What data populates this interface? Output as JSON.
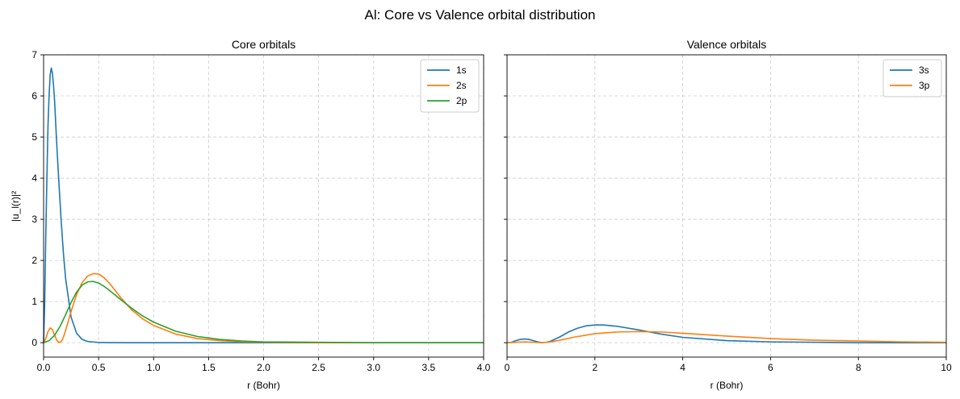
{
  "suptitle": "Al: Core vs Valence orbital distribution",
  "colors": {
    "1s": "#1f77b4",
    "2s": "#ff7f0e",
    "2p": "#2ca02c",
    "3s": "#1f77b4",
    "3p": "#ff7f0e",
    "grid": "#cccccc",
    "axis": "#000000"
  },
  "chart_data": [
    {
      "type": "line",
      "title": "Core orbitals",
      "xlabel": "r (Bohr)",
      "ylabel": "|u_l(r)|²",
      "xlim": [
        0,
        4.0
      ],
      "ylim": [
        -0.35,
        7.0
      ],
      "xticks": [
        0.0,
        0.5,
        1.0,
        1.5,
        2.0,
        2.5,
        3.0,
        3.5,
        4.0
      ],
      "xtick_labels": [
        "0.0",
        "0.5",
        "1.0",
        "1.5",
        "2.0",
        "2.5",
        "3.0",
        "3.5",
        "4.0"
      ],
      "yticks": [
        0,
        1,
        2,
        3,
        4,
        5,
        6,
        7
      ],
      "ytick_labels": [
        "0",
        "1",
        "2",
        "3",
        "4",
        "5",
        "6",
        "7"
      ],
      "grid": true,
      "legend": "top-right",
      "series": [
        {
          "name": "1s",
          "x": [
            0,
            0.01,
            0.02,
            0.03,
            0.04,
            0.05,
            0.06,
            0.07,
            0.08,
            0.09,
            0.1,
            0.11,
            0.12,
            0.14,
            0.16,
            0.18,
            0.2,
            0.25,
            0.3,
            0.35,
            0.4,
            0.5,
            0.6,
            0.8,
            1.0,
            2.0,
            4.0
          ],
          "y": [
            0,
            0.99,
            2.64,
            4.0,
            5.28,
            6.02,
            6.52,
            6.68,
            6.55,
            6.27,
            5.88,
            5.34,
            4.8,
            3.85,
            2.95,
            2.18,
            1.56,
            0.62,
            0.23,
            0.08,
            0.03,
            0.005,
            0.001,
            0,
            0,
            0,
            0
          ]
        },
        {
          "name": "2s",
          "x": [
            0,
            0.02,
            0.04,
            0.06,
            0.08,
            0.1,
            0.12,
            0.14,
            0.16,
            0.18,
            0.2,
            0.25,
            0.3,
            0.35,
            0.4,
            0.45,
            0.5,
            0.55,
            0.6,
            0.7,
            0.8,
            0.9,
            1.0,
            1.2,
            1.4,
            1.6,
            1.8,
            2.0,
            2.5,
            3.0,
            4.0
          ],
          "y": [
            0,
            0.1,
            0.27,
            0.36,
            0.32,
            0.18,
            0.06,
            0.0,
            0.03,
            0.13,
            0.3,
            0.76,
            1.17,
            1.46,
            1.62,
            1.68,
            1.67,
            1.58,
            1.44,
            1.1,
            0.8,
            0.58,
            0.42,
            0.21,
            0.1,
            0.05,
            0.02,
            0.01,
            0,
            0,
            0
          ]
        },
        {
          "name": "2p",
          "x": [
            0,
            0.05,
            0.1,
            0.15,
            0.2,
            0.25,
            0.3,
            0.35,
            0.4,
            0.45,
            0.5,
            0.55,
            0.6,
            0.7,
            0.8,
            0.9,
            1.0,
            1.2,
            1.4,
            1.6,
            1.8,
            2.0,
            2.5,
            3.0,
            4.0
          ],
          "y": [
            0,
            0.05,
            0.18,
            0.4,
            0.68,
            0.98,
            1.23,
            1.4,
            1.48,
            1.49,
            1.45,
            1.37,
            1.27,
            1.05,
            0.84,
            0.65,
            0.5,
            0.28,
            0.15,
            0.08,
            0.04,
            0.02,
            0.01,
            0,
            0
          ]
        }
      ]
    },
    {
      "type": "line",
      "title": "Valence orbitals",
      "xlabel": "r (Bohr)",
      "ylabel": "",
      "xlim": [
        0,
        10
      ],
      "ylim": [
        -0.35,
        7.0
      ],
      "xticks": [
        0,
        2,
        4,
        6,
        8,
        10
      ],
      "xtick_labels": [
        "0",
        "2",
        "4",
        "6",
        "8",
        "10"
      ],
      "yticks": [
        0,
        1,
        2,
        3,
        4,
        5,
        6,
        7
      ],
      "ytick_labels": [
        "",
        "",
        "",
        "",
        "",
        "",
        "",
        ""
      ],
      "grid": true,
      "legend": "top-right",
      "series": [
        {
          "name": "3s",
          "x": [
            0,
            0.1,
            0.2,
            0.3,
            0.4,
            0.5,
            0.6,
            0.7,
            0.8,
            0.9,
            1.0,
            1.2,
            1.4,
            1.6,
            1.8,
            2.0,
            2.2,
            2.5,
            3.0,
            3.5,
            4.0,
            5.0,
            6.0,
            7.0,
            8.0,
            9.0,
            10.0
          ],
          "y": [
            0,
            0.01,
            0.05,
            0.08,
            0.09,
            0.08,
            0.05,
            0.02,
            0.0,
            0.01,
            0.04,
            0.14,
            0.26,
            0.35,
            0.41,
            0.43,
            0.43,
            0.4,
            0.31,
            0.21,
            0.13,
            0.05,
            0.02,
            0.01,
            0,
            0,
            0
          ]
        },
        {
          "name": "3p",
          "x": [
            0,
            0.2,
            0.4,
            0.6,
            0.8,
            1.0,
            1.2,
            1.5,
            2.0,
            2.5,
            3.0,
            3.5,
            4.0,
            5.0,
            6.0,
            7.0,
            8.0,
            9.0,
            10.0
          ],
          "y": [
            0,
            0.01,
            0.02,
            0.01,
            0.0,
            0.02,
            0.06,
            0.13,
            0.22,
            0.26,
            0.27,
            0.26,
            0.23,
            0.16,
            0.1,
            0.06,
            0.04,
            0.02,
            0.01
          ]
        }
      ]
    }
  ]
}
